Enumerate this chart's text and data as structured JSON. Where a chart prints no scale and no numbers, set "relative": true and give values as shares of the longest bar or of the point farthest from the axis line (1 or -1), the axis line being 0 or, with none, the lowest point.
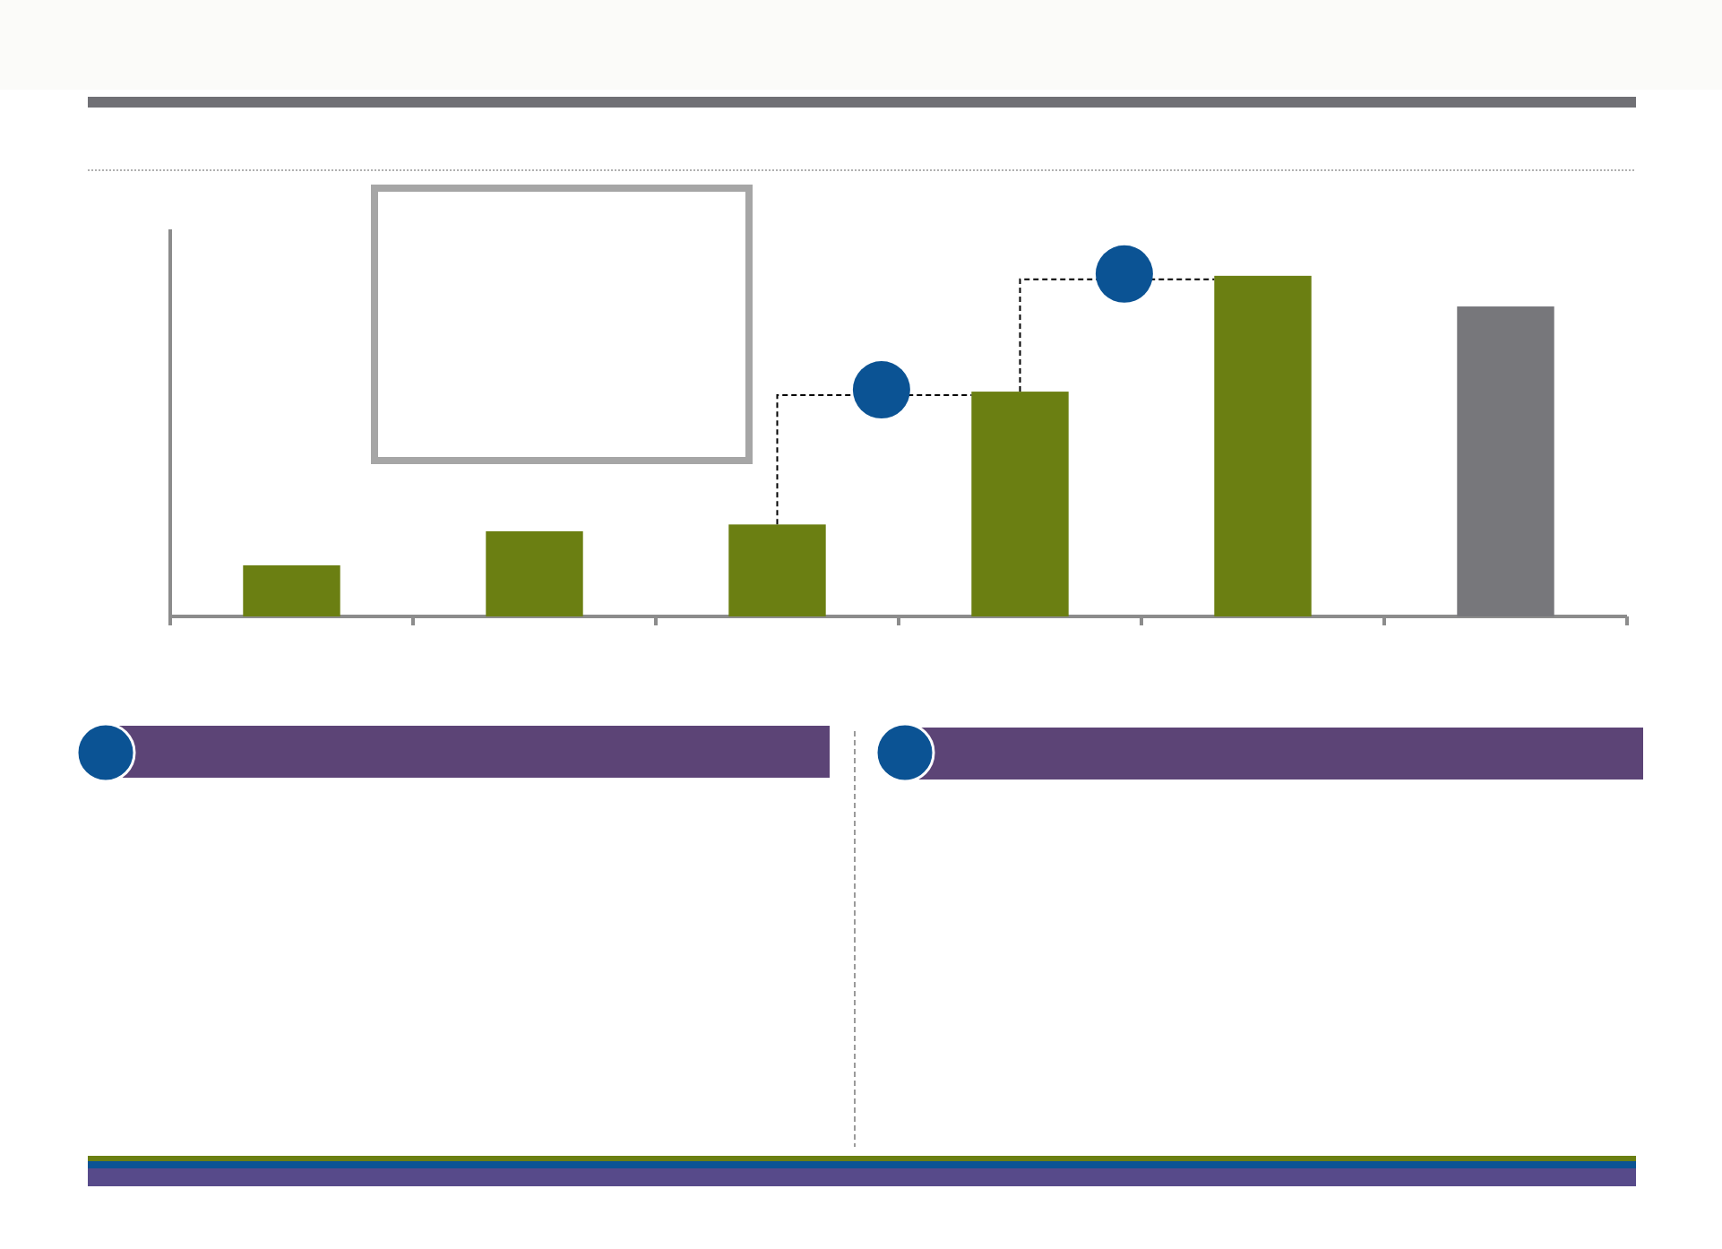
{
  "chart_data": {
    "type": "bar",
    "relative": true,
    "categories": [
      null,
      null,
      null,
      null,
      null,
      null
    ],
    "values": [
      0.15,
      0.25,
      0.27,
      0.66,
      1,
      0.91
    ],
    "colors": [
      "#6b7f12",
      "#6b7f12",
      "#6b7f12",
      "#6b7f12",
      "#6b7f12",
      "#77777b"
    ]
  }
}
